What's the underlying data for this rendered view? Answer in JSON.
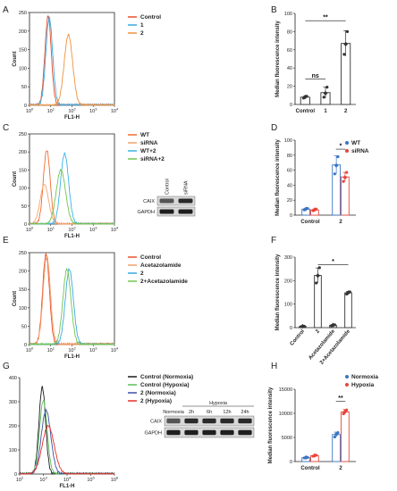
{
  "colors": {
    "control": "#e8502a",
    "s1": "#39a8e0",
    "s2": "#f0923d",
    "wt": "#f26b2f",
    "sirna": "#f3a46e",
    "wt2": "#3ab3e6",
    "sirna2": "#72c44c",
    "acet": "#f3a06a",
    "acet2": "#36b3e3",
    "normoxia": "#1a1a1a",
    "hypoxia": "#5cbf5a",
    "n2": "#3b4fa8",
    "h2": "#e8312a",
    "bar_blue": "#3b75c4",
    "bar_red": "#e8463c",
    "bar_gray": "#333333"
  },
  "chart_data": [
    {
      "panel": "A",
      "type": "line",
      "xlabel": "FL1-H",
      "ylabel": "Count",
      "xscale": "log",
      "xlim": [
        1,
        10000
      ],
      "ylim": [
        0,
        250
      ],
      "xticks": [
        "10^0",
        "10^1",
        "10^2",
        "10^3",
        "10^4"
      ],
      "yticks": [
        0,
        50,
        100,
        150,
        200,
        250
      ],
      "legend": [
        "Control",
        "1",
        "2"
      ],
      "series": [
        {
          "name": "Control",
          "color_key": "control",
          "peak_x": 7.5,
          "peak_y": 240,
          "sigma": 0.15
        },
        {
          "name": "1",
          "color_key": "s1",
          "peak_x": 8.5,
          "peak_y": 235,
          "sigma": 0.16
        },
        {
          "name": "2",
          "color_key": "s2",
          "peak_x": 68,
          "peak_y": 190,
          "sigma": 0.2
        }
      ]
    },
    {
      "panel": "B",
      "type": "bar",
      "ylabel": "Median fluorescence intensity",
      "ylim": [
        0,
        100
      ],
      "yticks": [
        0,
        20,
        40,
        60,
        80,
        100
      ],
      "categories": [
        "Control",
        "1",
        "2"
      ],
      "values": [
        8,
        13,
        67
      ],
      "errors": [
        1,
        6,
        14
      ],
      "points": [
        [
          7,
          8,
          9
        ],
        [
          8,
          12,
          19
        ],
        [
          55,
          66,
          80
        ]
      ],
      "annotations": [
        {
          "text": "ns",
          "from": 0,
          "to": 1,
          "y": 28
        },
        {
          "text": "**",
          "from": 0,
          "to": 2,
          "y": 92
        }
      ]
    },
    {
      "panel": "C",
      "type": "line",
      "xlabel": "FL1-H",
      "ylabel": "Count",
      "xscale": "log",
      "xlim": [
        1,
        10000
      ],
      "ylim": [
        0,
        250
      ],
      "xticks": [
        "10^0",
        "10^1",
        "10^2",
        "10^3",
        "10^4"
      ],
      "yticks": [
        0,
        50,
        100,
        150,
        200,
        250
      ],
      "legend": [
        "WT",
        "siRNA",
        "WT+2",
        "siRNA+2"
      ],
      "series": [
        {
          "name": "WT",
          "color_key": "wt",
          "peak_x": 6.5,
          "peak_y": 205,
          "sigma": 0.16
        },
        {
          "name": "siRNA",
          "color_key": "sirna",
          "peak_x": 5,
          "peak_y": 110,
          "sigma": 0.2
        },
        {
          "name": "WT+2",
          "color_key": "wt2",
          "peak_x": 45,
          "peak_y": 195,
          "sigma": 0.19
        },
        {
          "name": "siRNA+2",
          "color_key": "sirna2",
          "peak_x": 30,
          "peak_y": 150,
          "sigma": 0.22
        }
      ],
      "blot": {
        "columns": [
          "Control",
          "siRNA"
        ],
        "rows": [
          "CAIX",
          "GAPDH"
        ]
      }
    },
    {
      "panel": "D",
      "type": "bar",
      "ylabel": "Median fluorescence intensity",
      "ylim": [
        0,
        100
      ],
      "yticks": [
        0,
        20,
        40,
        60,
        80,
        100
      ],
      "categories": [
        "Control",
        "2"
      ],
      "legend": [
        "WT",
        "siRNA"
      ],
      "series": [
        {
          "name": "WT",
          "color_key": "bar_blue",
          "values": [
            8,
            67
          ],
          "errors": [
            1,
            12
          ],
          "points": [
            [
              7,
              8,
              9
            ],
            [
              55,
              66,
              78
            ]
          ]
        },
        {
          "name": "siRNA",
          "color_key": "bar_red",
          "values": [
            7,
            51
          ],
          "errors": [
            1,
            6
          ],
          "points": [
            [
              6,
              7,
              8
            ],
            [
              45,
              50,
              57
            ]
          ]
        }
      ],
      "annotations": [
        {
          "text": "*",
          "y": 88
        }
      ]
    },
    {
      "panel": "E",
      "type": "line",
      "xlabel": "FL1-H",
      "ylabel": "Count",
      "xscale": "log",
      "xlim": [
        1,
        10000
      ],
      "ylim": [
        0,
        250
      ],
      "xticks": [
        "10^0",
        "10^1",
        "10^2",
        "10^3",
        "10^4"
      ],
      "yticks": [
        0,
        50,
        100,
        150,
        200,
        250
      ],
      "legend": [
        "Control",
        "Acetazolamide",
        "2",
        "2+Acetazolamide"
      ],
      "series": [
        {
          "name": "Control",
          "color_key": "control",
          "peak_x": 6,
          "peak_y": 245,
          "sigma": 0.16
        },
        {
          "name": "Acetazolamide",
          "color_key": "acet",
          "peak_x": 6.5,
          "peak_y": 240,
          "sigma": 0.17
        },
        {
          "name": "2",
          "color_key": "s1",
          "peak_x": 75,
          "peak_y": 205,
          "sigma": 0.19
        },
        {
          "name": "2+Acetazolamide",
          "color_key": "sirna2",
          "peak_x": 58,
          "peak_y": 205,
          "sigma": 0.19
        }
      ]
    },
    {
      "panel": "F",
      "type": "bar",
      "ylabel": "Median fluorescence intensity",
      "ylim": [
        0,
        300
      ],
      "yticks": [
        0,
        100,
        200,
        300
      ],
      "categories": [
        "Control",
        "2",
        "Acetazolamide",
        "2+Acetazolamide"
      ],
      "values": [
        5,
        222,
        10,
        148
      ],
      "errors": [
        2,
        32,
        3,
        6
      ],
      "points": [
        [
          4,
          5,
          6
        ],
        [
          190,
          220,
          255
        ],
        [
          8,
          10,
          12
        ],
        [
          143,
          148,
          152
        ]
      ],
      "annotations": [
        {
          "text": "*",
          "from": 1,
          "to": 3,
          "y": 268
        }
      ]
    },
    {
      "panel": "G",
      "type": "line",
      "xlabel": "FL1-H",
      "xscale": "log",
      "xlim": [
        100,
        1000000
      ],
      "ylim": [
        0,
        400
      ],
      "xticks": [
        "10^2",
        "10^3",
        "10^4",
        "10^5",
        "10^6"
      ],
      "yticks": [
        0,
        100,
        200,
        300,
        400
      ],
      "legend": [
        "Control (Normoxia)",
        "Control (Hypoxia)",
        "2 (Normoxia)",
        "2 (Hypoxia)"
      ],
      "series": [
        {
          "name": "Control (Normoxia)",
          "color_key": "normoxia",
          "peak_x": 900,
          "peak_y": 360,
          "sigma": 0.14
        },
        {
          "name": "Control (Hypoxia)",
          "color_key": "hypoxia",
          "peak_x": 1000,
          "peak_y": 305,
          "sigma": 0.16
        },
        {
          "name": "2 (Normoxia)",
          "color_key": "n2",
          "peak_x": 1300,
          "peak_y": 265,
          "sigma": 0.2
        },
        {
          "name": "2 (Hypoxia)",
          "color_key": "h2",
          "peak_x": 1600,
          "peak_y": 200,
          "sigma": 0.25
        }
      ],
      "blot": {
        "group_label": "Hypoxia",
        "columns": [
          "Normoxia",
          "2h",
          "6h",
          "12h",
          "24h"
        ],
        "rows": [
          "CAIX",
          "GAPDH"
        ]
      }
    },
    {
      "panel": "H",
      "type": "bar",
      "ylabel": "Median fluorescence intensity",
      "ylim": [
        0,
        15000
      ],
      "yticks": [
        0,
        5000,
        10000,
        15000
      ],
      "categories": [
        "Control",
        "2"
      ],
      "legend": [
        "Normoxia",
        "Hypoxia"
      ],
      "series": [
        {
          "name": "Normoxia",
          "color_key": "bar_blue",
          "values": [
            800,
            5600
          ],
          "errors": [
            80,
            500
          ],
          "points": [
            [
              750,
              800,
              850
            ],
            [
              5100,
              5600,
              6000
            ]
          ]
        },
        {
          "name": "Hypoxia",
          "color_key": "bar_red",
          "values": [
            1200,
            10300
          ],
          "errors": [
            100,
            500
          ],
          "points": [
            [
              1100,
              1200,
              1300
            ],
            [
              9900,
              10300,
              10700
            ]
          ]
        }
      ],
      "annotations": [
        {
          "text": "**",
          "y": 12500
        }
      ]
    }
  ]
}
